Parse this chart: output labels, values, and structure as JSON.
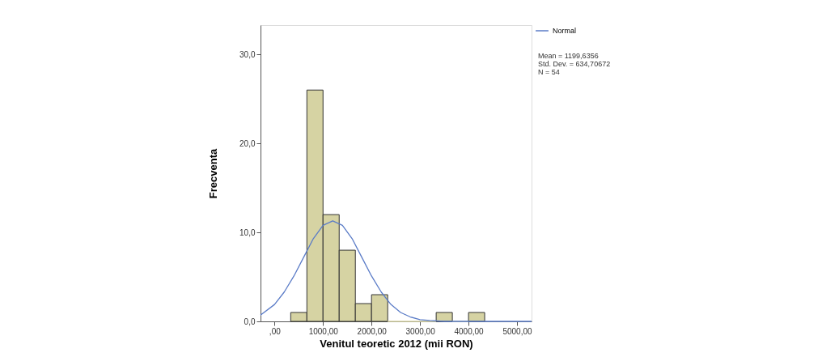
{
  "chart_data": {
    "type": "histogram",
    "xlabel": "Venitul teoretic 2012 (mii RON)",
    "ylabel": "Frecventa",
    "bins": [
      333.33,
      666.67,
      1000,
      1333.33,
      1666.67,
      2000,
      2333.33,
      2666.67,
      3000,
      3333.33,
      3666.67,
      4000,
      4333.33
    ],
    "values": [
      1,
      26,
      12,
      8,
      2,
      3,
      0,
      0,
      0,
      1,
      0,
      1
    ],
    "color": "#d6d3a3",
    "series": [
      {
        "name": "Normal",
        "type": "line",
        "color": "#5b7cc7",
        "x": [
          -289,
          0,
          200,
          400,
          600,
          800,
          1000,
          1200,
          1400,
          1600,
          1800,
          2000,
          2200,
          2400,
          2600,
          2800,
          3000,
          3200,
          3500,
          4000,
          5300
        ],
        "values": [
          0.7,
          1.9,
          3.3,
          5.1,
          7.2,
          9.3,
          10.8,
          11.3,
          10.8,
          9.3,
          7.2,
          5.1,
          3.3,
          1.9,
          1.0,
          0.5,
          0.2,
          0.1,
          0,
          0,
          0
        ]
      }
    ],
    "xlim": [
      -289,
      5300
    ],
    "ylim": [
      0,
      33.3
    ],
    "xticks": [
      {
        "value": 0,
        "label": ",00"
      },
      {
        "value": 1000,
        "label": "1000,00"
      },
      {
        "value": 2000,
        "label": "2000,00"
      },
      {
        "value": 3000,
        "label": "3000,00"
      },
      {
        "value": 4000,
        "label": "4000,00"
      },
      {
        "value": 5000,
        "label": "5000,00"
      }
    ],
    "yticks": [
      {
        "value": 0,
        "label": "0,0"
      },
      {
        "value": 10,
        "label": "10,0"
      },
      {
        "value": 20,
        "label": "20,0"
      },
      {
        "value": 30,
        "label": "30,0"
      }
    ],
    "annotations": [
      "Mean = 1199,6356",
      "Std. Dev. = 634,70672",
      "N = 54"
    ],
    "legend": "top right",
    "grid": false,
    "marker": "none",
    "line_style": "solid"
  }
}
